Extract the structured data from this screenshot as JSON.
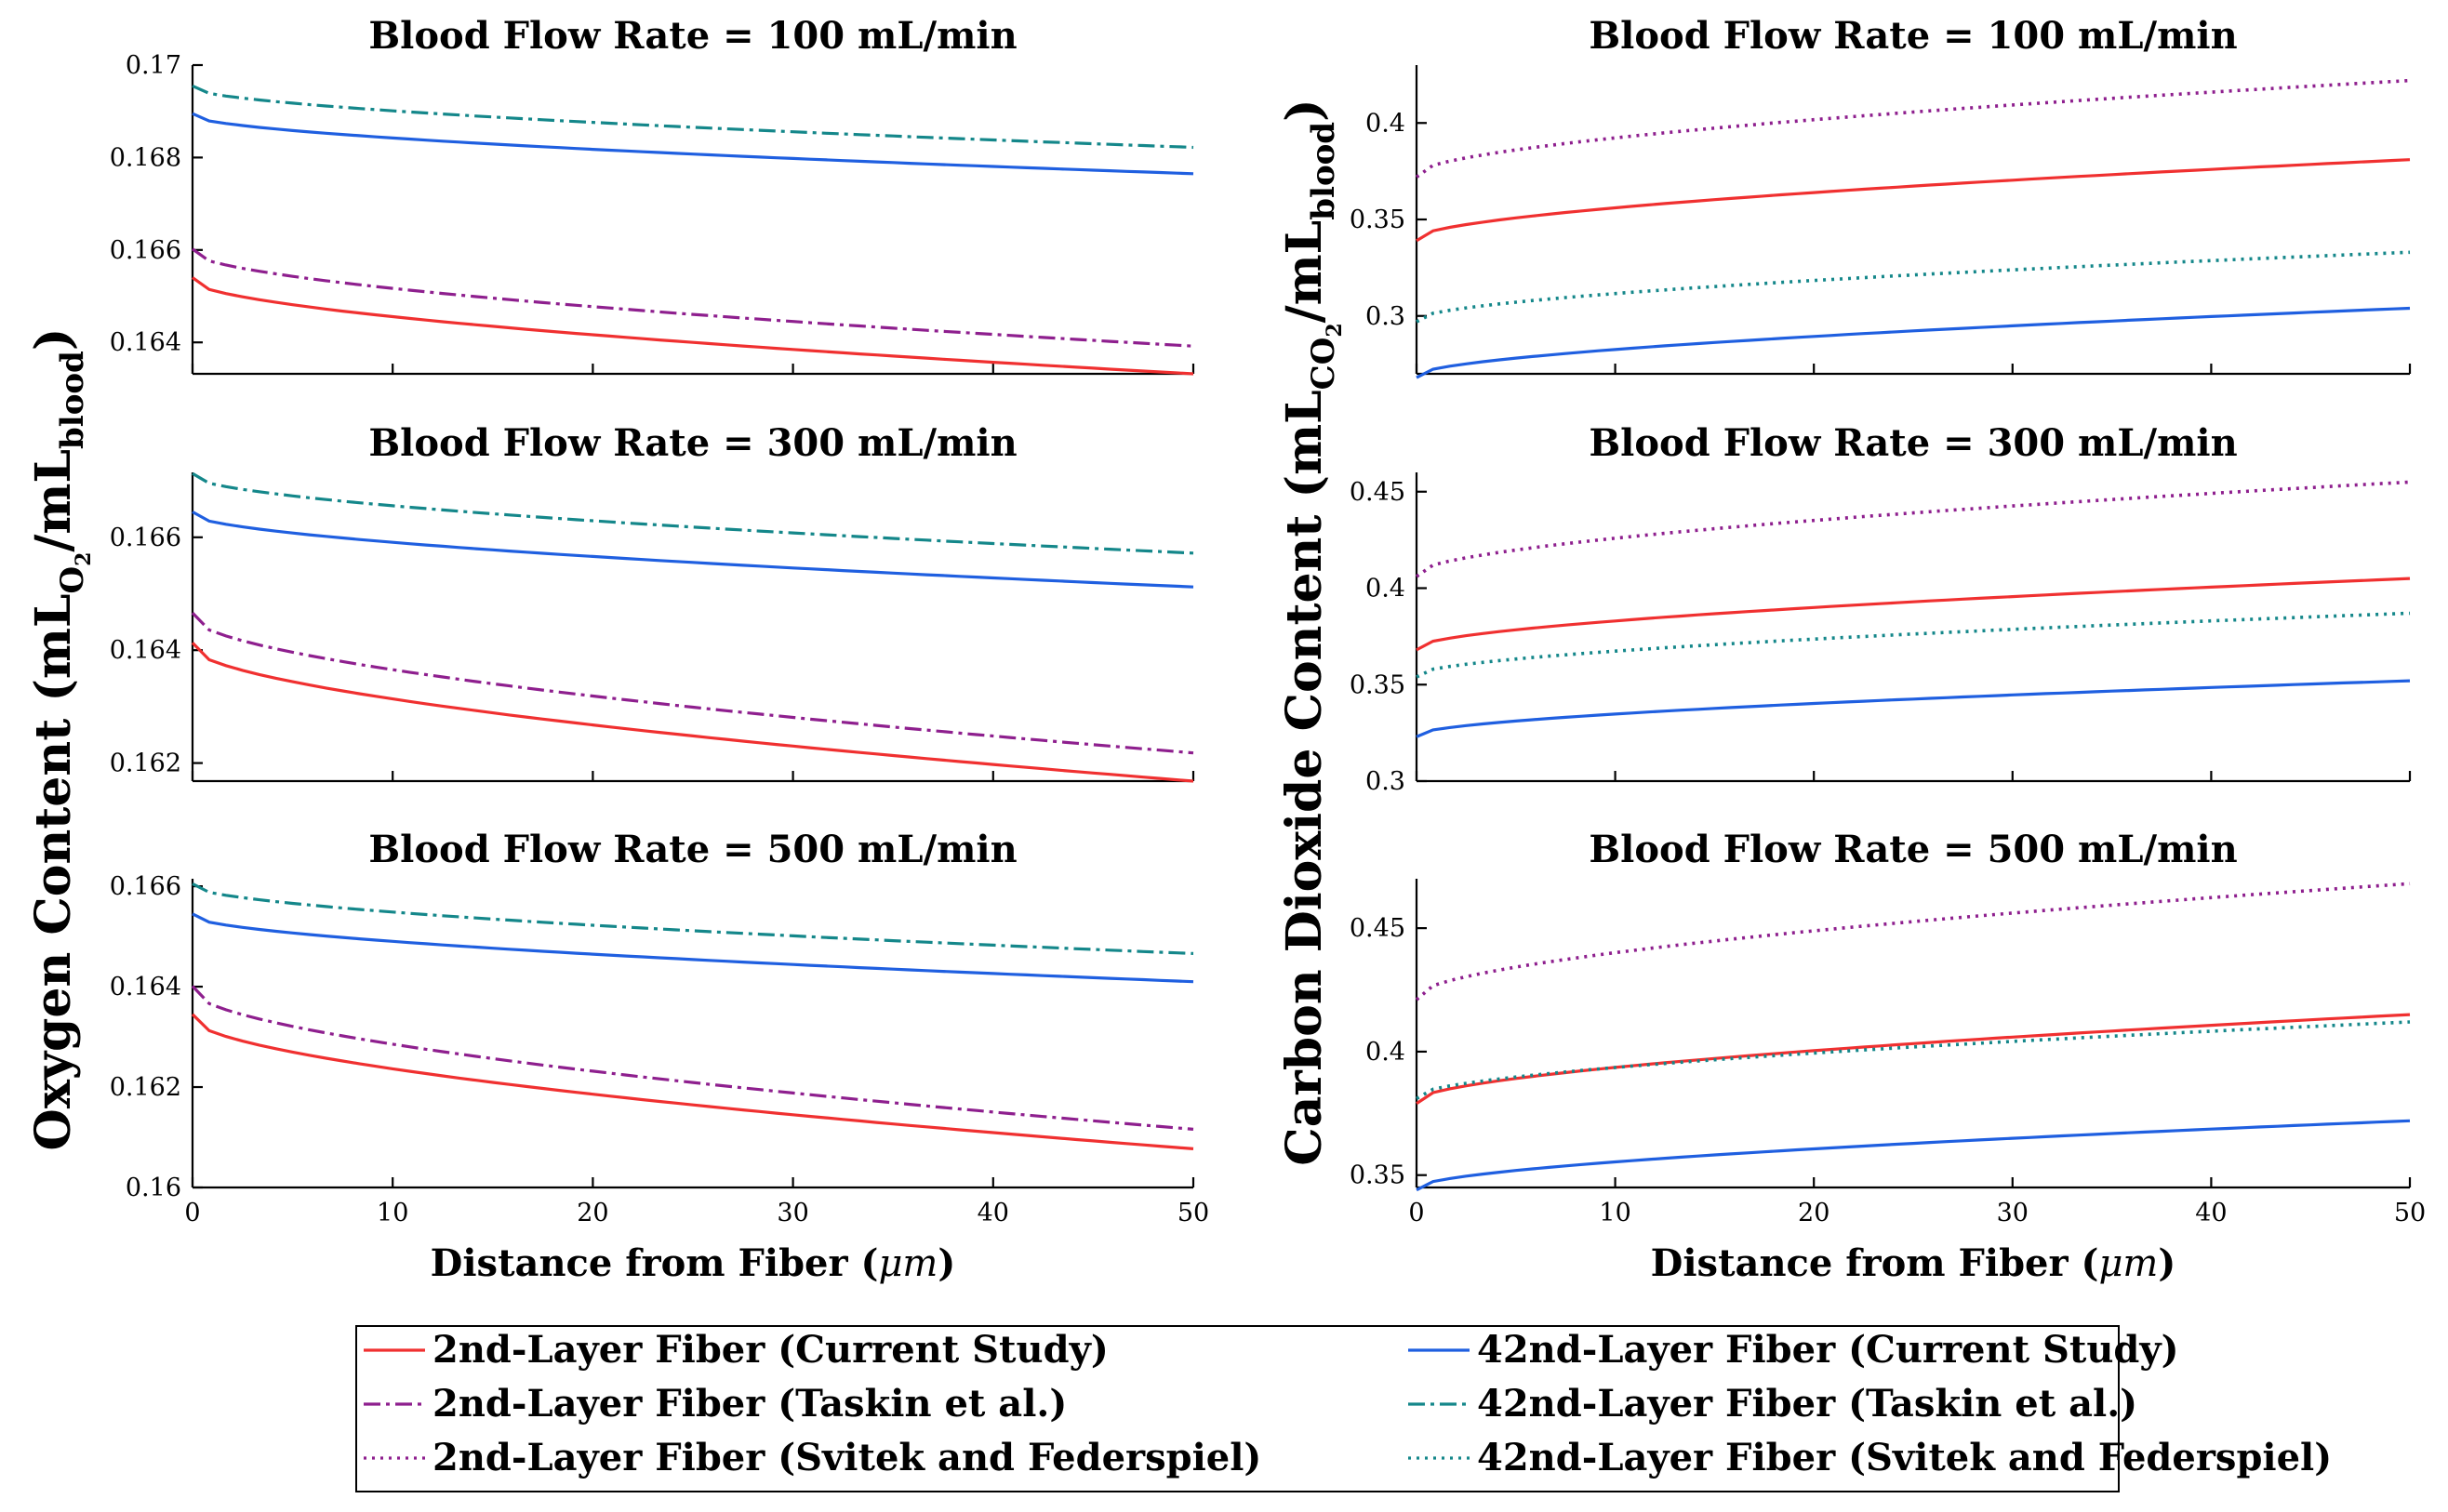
{
  "figure": {
    "ylabel_left": {
      "main": "Oxygen Content (mL",
      "sub1": "O",
      "sub2": "2",
      "mid": "/mL",
      "sub3": "blood",
      "end": ")"
    },
    "ylabel_right": {
      "main": "Carbon Dioxide Content (mL",
      "sub1": "CO",
      "sub2": "2",
      "mid": "/mL",
      "sub3": "blood",
      "end": ")"
    },
    "xlabel": {
      "text": "Distance from Fiber (",
      "sym": "μm",
      "end": ")"
    },
    "legend": {
      "items": [
        {
          "label": "2nd-Layer Fiber (Current Study)",
          "color": "#f03030",
          "style": "solid"
        },
        {
          "label": "42nd-Layer Fiber (Current Study)",
          "color": "#1f5fe0",
          "style": "solid"
        },
        {
          "label": "2nd-Layer Fiber (Taskin et al.)",
          "color": "#8e1f8e",
          "style": "dashdot"
        },
        {
          "label": "42nd-Layer Fiber (Taskin et al.)",
          "color": "#14878a",
          "style": "dashdot"
        },
        {
          "label": "2nd-Layer Fiber (Svitek and Federspiel)",
          "color": "#8e1f8e",
          "style": "dotted"
        },
        {
          "label": "42nd-Layer Fiber (Svitek and Federspiel)",
          "color": "#14878a",
          "style": "dotted"
        }
      ]
    }
  },
  "chart_data": [
    {
      "type": "line",
      "title": "Blood Flow Rate = 100 mL/min",
      "quantity": "oxygen",
      "xlim": [
        0,
        50
      ],
      "ylim": [
        0.16332,
        0.17
      ],
      "yticks": [
        0.164,
        0.166,
        0.168,
        0.17
      ],
      "ytick_labels": [
        "0.164",
        "0.166",
        "0.168",
        "0.17"
      ],
      "xticks": [],
      "xtick_labels": [],
      "series": [
        {
          "name": "2nd-Layer Fiber (Current Study)",
          "start": 0.1654,
          "end": 0.16332
        },
        {
          "name": "42nd-Layer Fiber (Current Study)",
          "start": 0.16895,
          "end": 0.16765
        },
        {
          "name": "2nd-Layer Fiber (Taskin et al.)",
          "start": 0.16602,
          "end": 0.16392
        },
        {
          "name": "42nd-Layer Fiber (Taskin et al.)",
          "start": 0.16955,
          "end": 0.16822
        }
      ]
    },
    {
      "type": "line",
      "title": "Blood Flow Rate = 100 mL/min",
      "quantity": "co2",
      "xlim": [
        0,
        50
      ],
      "ylim": [
        0.27,
        0.43
      ],
      "yticks": [
        0.3,
        0.35,
        0.4
      ],
      "ytick_labels": [
        "0.3",
        "0.35",
        "0.4"
      ],
      "xticks": [],
      "xtick_labels": [],
      "series": [
        {
          "name": "2nd-Layer Fiber (Current Study)",
          "start": 0.339,
          "end": 0.381
        },
        {
          "name": "42nd-Layer Fiber (Current Study)",
          "start": 0.268,
          "end": 0.304
        },
        {
          "name": "2nd-Layer Fiber (Svitek and Federspiel)",
          "start": 0.372,
          "end": 0.422
        },
        {
          "name": "42nd-Layer Fiber (Svitek and Federspiel)",
          "start": 0.297,
          "end": 0.333
        }
      ]
    },
    {
      "type": "line",
      "title": "Blood Flow Rate = 300 mL/min",
      "quantity": "oxygen",
      "xlim": [
        0,
        50
      ],
      "ylim": [
        0.16168,
        0.16715
      ],
      "yticks": [
        0.162,
        0.164,
        0.166
      ],
      "ytick_labels": [
        "0.162",
        "0.164",
        "0.166"
      ],
      "xticks": [],
      "xtick_labels": [],
      "series": [
        {
          "name": "2nd-Layer Fiber (Current Study)",
          "start": 0.16413,
          "end": 0.16168
        },
        {
          "name": "42nd-Layer Fiber (Current Study)",
          "start": 0.16645,
          "end": 0.16512
        },
        {
          "name": "2nd-Layer Fiber (Taskin et al.)",
          "start": 0.16466,
          "end": 0.16218
        },
        {
          "name": "42nd-Layer Fiber (Taskin et al.)",
          "start": 0.16713,
          "end": 0.16572
        }
      ]
    },
    {
      "type": "line",
      "title": "Blood Flow Rate = 300 mL/min",
      "quantity": "co2",
      "xlim": [
        0,
        50
      ],
      "ylim": [
        0.3,
        0.46
      ],
      "yticks": [
        0.3,
        0.35,
        0.4,
        0.45
      ],
      "ytick_labels": [
        "0.3",
        "0.35",
        "0.4",
        "0.45"
      ],
      "xticks": [],
      "xtick_labels": [],
      "series": [
        {
          "name": "2nd-Layer Fiber (Current Study)",
          "start": 0.368,
          "end": 0.405
        },
        {
          "name": "42nd-Layer Fiber (Current Study)",
          "start": 0.323,
          "end": 0.352
        },
        {
          "name": "2nd-Layer Fiber (Svitek and Federspiel)",
          "start": 0.406,
          "end": 0.455
        },
        {
          "name": "42nd-Layer Fiber (Svitek and Federspiel)",
          "start": 0.354,
          "end": 0.387
        }
      ]
    },
    {
      "type": "line",
      "title": "Blood Flow Rate = 500 mL/min",
      "quantity": "oxygen",
      "xlim": [
        0,
        50
      ],
      "ylim": [
        0.16,
        0.16615
      ],
      "yticks": [
        0.16,
        0.162,
        0.164,
        0.166
      ],
      "ytick_labels": [
        "0.16",
        "0.162",
        "0.164",
        "0.166"
      ],
      "xticks": [
        0,
        10,
        20,
        30,
        40,
        50
      ],
      "xtick_labels": [
        "0",
        "10",
        "20",
        "30",
        "40",
        "50"
      ],
      "series": [
        {
          "name": "2nd-Layer Fiber (Current Study)",
          "start": 0.16345,
          "end": 0.16077
        },
        {
          "name": "42nd-Layer Fiber (Current Study)",
          "start": 0.16545,
          "end": 0.1641
        },
        {
          "name": "2nd-Layer Fiber (Taskin et al.)",
          "start": 0.16401,
          "end": 0.16116
        },
        {
          "name": "42nd-Layer Fiber (Taskin et al.)",
          "start": 0.16605,
          "end": 0.16466
        }
      ]
    },
    {
      "type": "line",
      "title": "Blood Flow Rate = 500 mL/min",
      "quantity": "co2",
      "xlim": [
        0,
        50
      ],
      "ylim": [
        0.345,
        0.47
      ],
      "yticks": [
        0.35,
        0.4,
        0.45
      ],
      "ytick_labels": [
        "0.35",
        "0.4",
        "0.45"
      ],
      "xticks": [
        0,
        10,
        20,
        30,
        40,
        50
      ],
      "xtick_labels": [
        "0",
        "10",
        "20",
        "30",
        "40",
        "50"
      ],
      "series": [
        {
          "name": "2nd-Layer Fiber (Current Study)",
          "start": 0.379,
          "end": 0.415
        },
        {
          "name": "42nd-Layer Fiber (Current Study)",
          "start": 0.344,
          "end": 0.372
        },
        {
          "name": "2nd-Layer Fiber (Svitek and Federspiel)",
          "start": 0.421,
          "end": 0.468
        },
        {
          "name": "42nd-Layer Fiber (Svitek and Federspiel)",
          "start": 0.381,
          "end": 0.412
        }
      ]
    }
  ]
}
